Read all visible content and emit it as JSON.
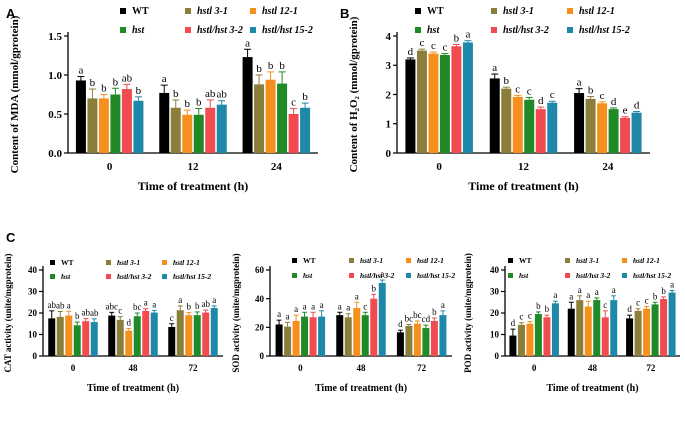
{
  "colors": {
    "WT": "#000000",
    "hstl 3-1": "#8b7d3a",
    "hstl 12-1": "#f5901e",
    "hst": "#1f8a26",
    "hstl/hst 3-2": "#f04b50",
    "hstl/hst 15-2": "#1e88a8"
  },
  "legend_order": [
    "WT",
    "hstl 3-1",
    "hstl 12-1",
    "hst",
    "hstl/hst 3-2",
    "hstl/hst 15-2"
  ],
  "chart_data": [
    {
      "id": "A",
      "type": "bar",
      "panel_label": "A",
      "ylabel": "Content of MDA (mmol/gprotein)",
      "xlabel": "Time of treatment (h)",
      "ylim": [
        0,
        1.5
      ],
      "yticks": [
        "0.0",
        "0.5",
        "1.0",
        "1.5"
      ],
      "ytick_values": [
        0,
        0.5,
        1.0,
        1.5
      ],
      "categories": [
        "0",
        "12",
        "24"
      ],
      "series": [
        {
          "name": "WT",
          "values": [
            0.93,
            0.77,
            1.23
          ],
          "errors": [
            0.05,
            0.1,
            0.1
          ],
          "letters": [
            "a",
            "a",
            "a"
          ]
        },
        {
          "name": "hstl 3-1",
          "values": [
            0.7,
            0.58,
            0.88
          ],
          "errors": [
            0.12,
            0.1,
            0.12
          ],
          "letters": [
            "b",
            "b",
            "b"
          ]
        },
        {
          "name": "hstl 12-1",
          "values": [
            0.7,
            0.49,
            0.94
          ],
          "errors": [
            0.05,
            0.06,
            0.1
          ],
          "letters": [
            "b",
            "b",
            "b"
          ]
        },
        {
          "name": "hst",
          "values": [
            0.75,
            0.49,
            0.89
          ],
          "errors": [
            0.08,
            0.08,
            0.15
          ],
          "letters": [
            "b",
            "b",
            "b"
          ]
        },
        {
          "name": "hstl/hst 3-2",
          "values": [
            0.82,
            0.58,
            0.5
          ],
          "errors": [
            0.06,
            0.1,
            0.07
          ],
          "letters": [
            "ab",
            "ab",
            "c"
          ]
        },
        {
          "name": "hstl/hst 15-2",
          "values": [
            0.67,
            0.62,
            0.58
          ],
          "errors": [
            0.05,
            0.05,
            0.06
          ],
          "letters": [
            "b",
            "ab",
            "b"
          ]
        }
      ]
    },
    {
      "id": "B",
      "type": "bar",
      "panel_label": "B",
      "ylabel": "Content of H₂O₂ (mmol/gprotein)",
      "xlabel": "Time of treatment (h)",
      "ylim": [
        0,
        4
      ],
      "yticks": [
        "0",
        "1",
        "2",
        "3",
        "4"
      ],
      "ytick_values": [
        0,
        1,
        2,
        3,
        4
      ],
      "categories": [
        "0",
        "12",
        "24"
      ],
      "series": [
        {
          "name": "WT",
          "values": [
            3.2,
            2.55,
            2.05
          ],
          "errors": [
            0.05,
            0.15,
            0.15
          ],
          "letters": [
            "d",
            "a",
            "a"
          ]
        },
        {
          "name": "hstl 3-1",
          "values": [
            3.5,
            2.2,
            1.85
          ],
          "errors": [
            0.05,
            0.05,
            0.08
          ],
          "letters": [
            "c",
            "b",
            "b"
          ]
        },
        {
          "name": "hstl 12-1",
          "values": [
            3.4,
            1.92,
            1.7
          ],
          "errors": [
            0.05,
            0.05,
            0.05
          ],
          "letters": [
            "c",
            "c",
            "c"
          ]
        },
        {
          "name": "hst",
          "values": [
            3.35,
            1.82,
            1.5
          ],
          "errors": [
            0.05,
            0.08,
            0.04
          ],
          "letters": [
            "c",
            "c",
            "d"
          ]
        },
        {
          "name": "hstl/hst 3-2",
          "values": [
            3.65,
            1.5,
            1.2
          ],
          "errors": [
            0.06,
            0.07,
            0.04
          ],
          "letters": [
            "b",
            "d",
            "e"
          ]
        },
        {
          "name": "hstl/hst 15-2",
          "values": [
            3.78,
            1.72,
            1.38
          ],
          "errors": [
            0.06,
            0.05,
            0.04
          ],
          "letters": [
            "a",
            "c",
            "d"
          ]
        }
      ]
    },
    {
      "id": "C1",
      "type": "bar",
      "panel_label": "C",
      "ylabel": "CAT activity (unite/mgprotein)",
      "xlabel": "Time of treatment (h)",
      "ylim": [
        0,
        40
      ],
      "yticks": [
        "0",
        "10",
        "20",
        "30",
        "40"
      ],
      "ytick_values": [
        0,
        10,
        20,
        30,
        40
      ],
      "categories": [
        "0",
        "48",
        "72"
      ],
      "series": [
        {
          "name": "WT",
          "values": [
            17.5,
            18.8,
            13.5
          ],
          "errors": [
            3.5,
            1.5,
            1.5
          ],
          "letters": [
            "ab",
            "abc",
            "c"
          ]
        },
        {
          "name": "hstl 3-1",
          "values": [
            18.2,
            16.8,
            21.3
          ],
          "errors": [
            2.5,
            1.5,
            2.0
          ],
          "letters": [
            "ab",
            "c",
            "a"
          ]
        },
        {
          "name": "hstl 12-1",
          "values": [
            18.8,
            11.8,
            19.0
          ],
          "errors": [
            2.0,
            1.0,
            1.2
          ],
          "letters": [
            "a",
            "d",
            "b"
          ]
        },
        {
          "name": "hst",
          "values": [
            14.3,
            18.5,
            19.0
          ],
          "errors": [
            1.5,
            1.5,
            1.5
          ],
          "letters": [
            "b",
            "bc",
            "b"
          ]
        },
        {
          "name": "hstl/hst 3-2",
          "values": [
            16.2,
            21.0,
            20.2
          ],
          "errors": [
            1.2,
            1.0,
            1.2
          ],
          "letters": [
            "ab",
            "a",
            "ab"
          ]
        },
        {
          "name": "hstl/hst 15-2",
          "values": [
            15.8,
            20.2,
            22.3
          ],
          "errors": [
            1.5,
            1.0,
            1.0
          ],
          "letters": [
            "ab",
            "a",
            "a"
          ]
        }
      ]
    },
    {
      "id": "C2",
      "type": "bar",
      "panel_label": "",
      "ylabel": "SOD activity (unite/mgprotein)",
      "xlabel": "Time of treatment (h)",
      "ylim": [
        0,
        60
      ],
      "yticks": [
        "0",
        "20",
        "40",
        "60"
      ],
      "ytick_values": [
        0,
        20,
        40,
        60
      ],
      "categories": [
        "0",
        "48",
        "72"
      ],
      "series": [
        {
          "name": "WT",
          "values": [
            22.0,
            28.5,
            16.5
          ],
          "errors": [
            3.0,
            2.0,
            1.5
          ],
          "letters": [
            "a",
            "a",
            "d"
          ]
        },
        {
          "name": "hstl 3-1",
          "values": [
            20.5,
            27.0,
            21.0
          ],
          "errors": [
            3.0,
            2.5,
            1.0
          ],
          "letters": [
            "a",
            "a",
            "bc"
          ]
        },
        {
          "name": "hstl 12-1",
          "values": [
            24.5,
            33.5,
            22.5
          ],
          "errors": [
            4.0,
            4.0,
            2.0
          ],
          "letters": [
            "a",
            "a",
            "bc"
          ]
        },
        {
          "name": "hst",
          "values": [
            27.5,
            28.5,
            19.5
          ],
          "errors": [
            3.0,
            2.0,
            2.0
          ],
          "letters": [
            "a",
            "c",
            "cd"
          ]
        },
        {
          "name": "hstl/hst 3-2",
          "values": [
            27.0,
            40.0,
            24.5
          ],
          "errors": [
            3.5,
            3.0,
            2.0
          ],
          "letters": [
            "a",
            "b",
            "b"
          ]
        },
        {
          "name": "hstl/hst 15-2",
          "values": [
            27.5,
            51.0,
            28.5
          ],
          "errors": [
            4.0,
            2.0,
            3.0
          ],
          "letters": [
            "a",
            "a",
            "a"
          ]
        }
      ]
    },
    {
      "id": "C3",
      "type": "bar",
      "panel_label": "",
      "ylabel": "POD activity (unite/mgprotein)",
      "xlabel": "Time of treatment (h)",
      "ylim": [
        0,
        40
      ],
      "yticks": [
        "0",
        "10",
        "20",
        "30",
        "40"
      ],
      "ytick_values": [
        0,
        10,
        20,
        30,
        40
      ],
      "categories": [
        "0",
        "48",
        "72"
      ],
      "series": [
        {
          "name": "WT",
          "values": [
            9.5,
            22.0,
            17.5
          ],
          "errors": [
            3.0,
            3.0,
            1.5
          ],
          "letters": [
            "d",
            "a",
            "d"
          ]
        },
        {
          "name": "hstl 3-1",
          "values": [
            14.5,
            26.0,
            21.0
          ],
          "errors": [
            1.0,
            2.0,
            1.0
          ],
          "letters": [
            "c",
            "a",
            "c"
          ]
        },
        {
          "name": "hstl 12-1",
          "values": [
            15.0,
            23.0,
            22.0
          ],
          "errors": [
            1.0,
            2.5,
            1.0
          ],
          "letters": [
            "c",
            "a",
            "c"
          ]
        },
        {
          "name": "hst",
          "values": [
            19.5,
            26.0,
            24.0
          ],
          "errors": [
            1.0,
            1.0,
            1.0
          ],
          "letters": [
            "b",
            "a",
            "b"
          ]
        },
        {
          "name": "hstl/hst 3-2",
          "values": [
            18.0,
            18.0,
            26.5
          ],
          "errors": [
            1.0,
            3.0,
            1.0
          ],
          "letters": [
            "b",
            "c",
            "b"
          ]
        },
        {
          "name": "hstl/hst 15-2",
          "values": [
            24.5,
            26.0,
            29.5
          ],
          "errors": [
            1.0,
            2.0,
            1.0
          ],
          "letters": [
            "a",
            "a",
            "a"
          ]
        }
      ]
    }
  ]
}
